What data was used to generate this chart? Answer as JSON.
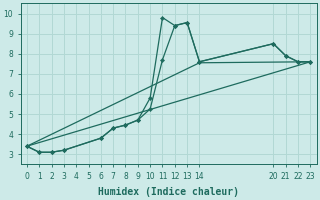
{
  "xlabel": "Humidex (Indice chaleur)",
  "background_color": "#cdeae8",
  "grid_color": "#b2d8d4",
  "line_color": "#1e6b5e",
  "xlim": [
    -0.5,
    23.5
  ],
  "ylim": [
    2.5,
    10.5
  ],
  "xticks": [
    0,
    1,
    2,
    3,
    4,
    5,
    6,
    7,
    8,
    9,
    10,
    11,
    12,
    13,
    14,
    20,
    21,
    22,
    23
  ],
  "yticks": [
    3,
    4,
    5,
    6,
    7,
    8,
    9,
    10
  ],
  "lines": [
    {
      "x": [
        0,
        1,
        2,
        3,
        6,
        7,
        8,
        9,
        10,
        11,
        12,
        13,
        14,
        20,
        21,
        22,
        23
      ],
      "y": [
        3.4,
        3.1,
        3.1,
        3.2,
        3.8,
        4.3,
        4.45,
        4.7,
        5.8,
        9.8,
        9.4,
        9.55,
        7.6,
        8.5,
        7.9,
        7.6,
        7.6
      ],
      "markers": true
    },
    {
      "x": [
        0,
        1,
        2,
        3,
        6,
        7,
        8,
        9,
        10,
        11,
        12,
        13,
        14,
        20,
        21,
        22,
        23
      ],
      "y": [
        3.4,
        3.1,
        3.1,
        3.2,
        3.8,
        4.3,
        4.45,
        4.7,
        5.25,
        7.7,
        9.4,
        9.55,
        7.6,
        8.5,
        7.9,
        7.6,
        7.6
      ],
      "markers": true
    },
    {
      "x": [
        0,
        23
      ],
      "y": [
        3.4,
        7.6
      ],
      "markers": false
    },
    {
      "x": [
        0,
        14,
        23
      ],
      "y": [
        3.4,
        7.55,
        7.6
      ],
      "markers": false
    }
  ]
}
